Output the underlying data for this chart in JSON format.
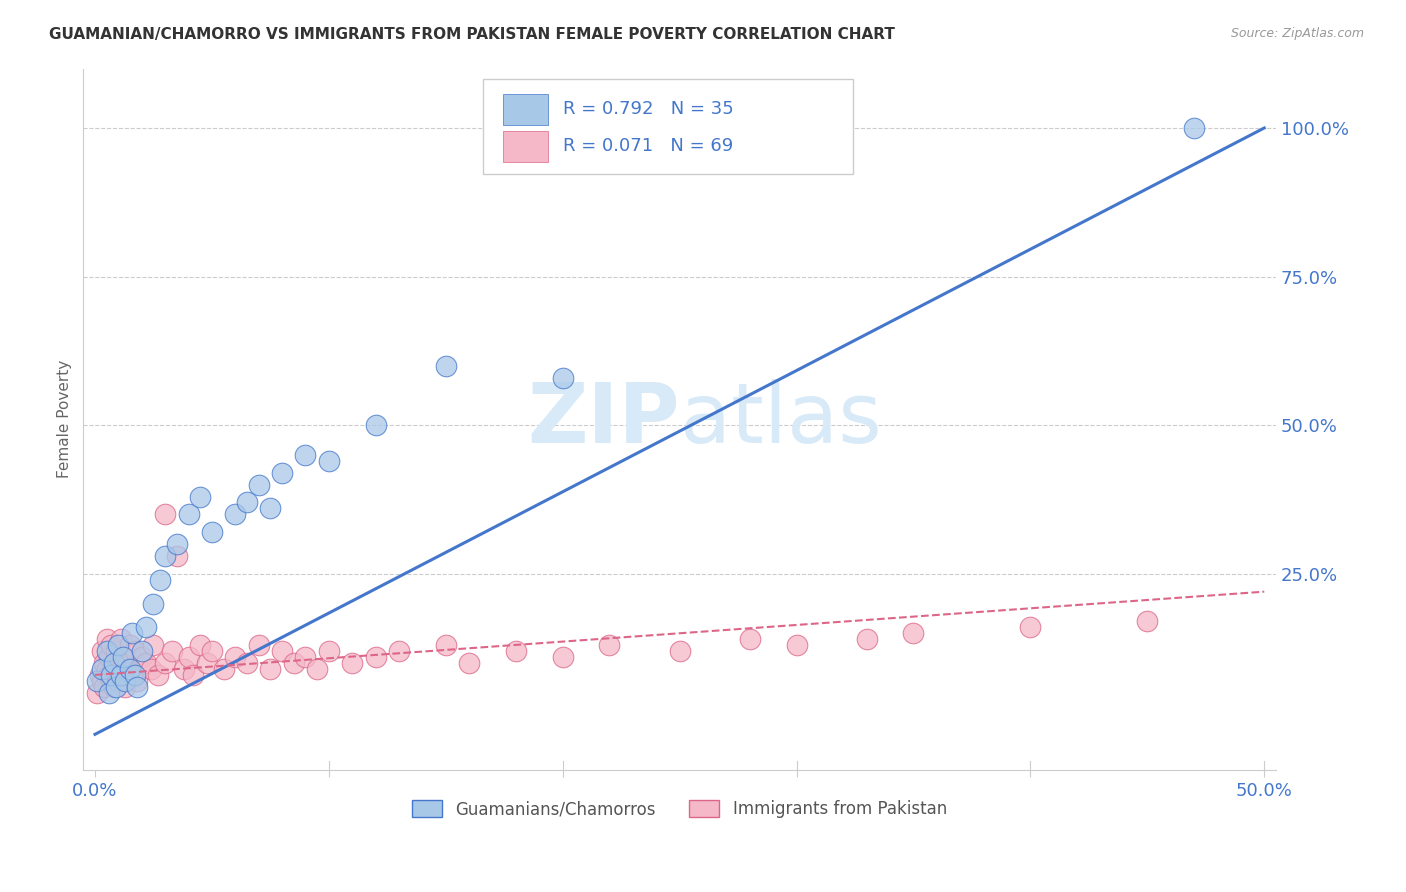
{
  "title": "GUAMANIAN/CHAMORRO VS IMMIGRANTS FROM PAKISTAN FEMALE POVERTY CORRELATION CHART",
  "source": "Source: ZipAtlas.com",
  "ylabel": "Female Poverty",
  "legend_label1": "Guamanians/Chamorros",
  "legend_label2": "Immigrants from Pakistan",
  "R1": 0.792,
  "N1": 35,
  "R2": 0.071,
  "N2": 69,
  "color_blue": "#a8c8e8",
  "color_pink": "#f4b8c8",
  "line_color_blue": "#4477cc",
  "line_color_pink": "#dd6688",
  "watermark_color": "#d8eaf8",
  "background_color": "#ffffff",
  "grid_color": "#cccccc",
  "axis_label_color": "#4477cc",
  "ylabel_color": "#666666",
  "title_color": "#333333",
  "source_color": "#999999",
  "xlim": [
    -0.005,
    0.505
  ],
  "ylim": [
    -0.08,
    1.1
  ],
  "blue_line_x0": 0.0,
  "blue_line_y0": -0.02,
  "blue_line_x1": 0.5,
  "blue_line_y1": 1.0,
  "pink_line_x0": 0.0,
  "pink_line_y0": 0.08,
  "pink_line_x1": 0.5,
  "pink_line_y1": 0.22,
  "guam_x": [
    0.001,
    0.003,
    0.005,
    0.006,
    0.007,
    0.008,
    0.009,
    0.01,
    0.011,
    0.012,
    0.013,
    0.015,
    0.016,
    0.017,
    0.018,
    0.02,
    0.022,
    0.025,
    0.028,
    0.03,
    0.035,
    0.04,
    0.045,
    0.05,
    0.06,
    0.065,
    0.07,
    0.075,
    0.08,
    0.09,
    0.1,
    0.12,
    0.15,
    0.2,
    0.47
  ],
  "guam_y": [
    0.07,
    0.09,
    0.12,
    0.05,
    0.08,
    0.1,
    0.06,
    0.13,
    0.08,
    0.11,
    0.07,
    0.09,
    0.15,
    0.08,
    0.06,
    0.12,
    0.16,
    0.2,
    0.24,
    0.28,
    0.3,
    0.35,
    0.38,
    0.32,
    0.35,
    0.37,
    0.4,
    0.36,
    0.42,
    0.45,
    0.44,
    0.5,
    0.6,
    0.58,
    1.0
  ],
  "pak_x": [
    0.001,
    0.002,
    0.003,
    0.003,
    0.004,
    0.004,
    0.005,
    0.005,
    0.006,
    0.006,
    0.007,
    0.007,
    0.008,
    0.008,
    0.009,
    0.009,
    0.01,
    0.01,
    0.011,
    0.011,
    0.012,
    0.013,
    0.013,
    0.014,
    0.015,
    0.015,
    0.016,
    0.017,
    0.018,
    0.02,
    0.022,
    0.024,
    0.025,
    0.027,
    0.03,
    0.03,
    0.033,
    0.035,
    0.038,
    0.04,
    0.042,
    0.045,
    0.048,
    0.05,
    0.055,
    0.06,
    0.065,
    0.07,
    0.075,
    0.08,
    0.085,
    0.09,
    0.095,
    0.1,
    0.11,
    0.12,
    0.13,
    0.15,
    0.16,
    0.18,
    0.2,
    0.22,
    0.25,
    0.28,
    0.3,
    0.33,
    0.35,
    0.4,
    0.45
  ],
  "pak_y": [
    0.05,
    0.08,
    0.07,
    0.12,
    0.06,
    0.1,
    0.09,
    0.14,
    0.08,
    0.11,
    0.07,
    0.13,
    0.09,
    0.06,
    0.12,
    0.08,
    0.1,
    0.07,
    0.09,
    0.14,
    0.08,
    0.11,
    0.06,
    0.1,
    0.09,
    0.13,
    0.08,
    0.12,
    0.07,
    0.11,
    0.1,
    0.09,
    0.13,
    0.08,
    0.35,
    0.1,
    0.12,
    0.28,
    0.09,
    0.11,
    0.08,
    0.13,
    0.1,
    0.12,
    0.09,
    0.11,
    0.1,
    0.13,
    0.09,
    0.12,
    0.1,
    0.11,
    0.09,
    0.12,
    0.1,
    0.11,
    0.12,
    0.13,
    0.1,
    0.12,
    0.11,
    0.13,
    0.12,
    0.14,
    0.13,
    0.14,
    0.15,
    0.16,
    0.17
  ]
}
